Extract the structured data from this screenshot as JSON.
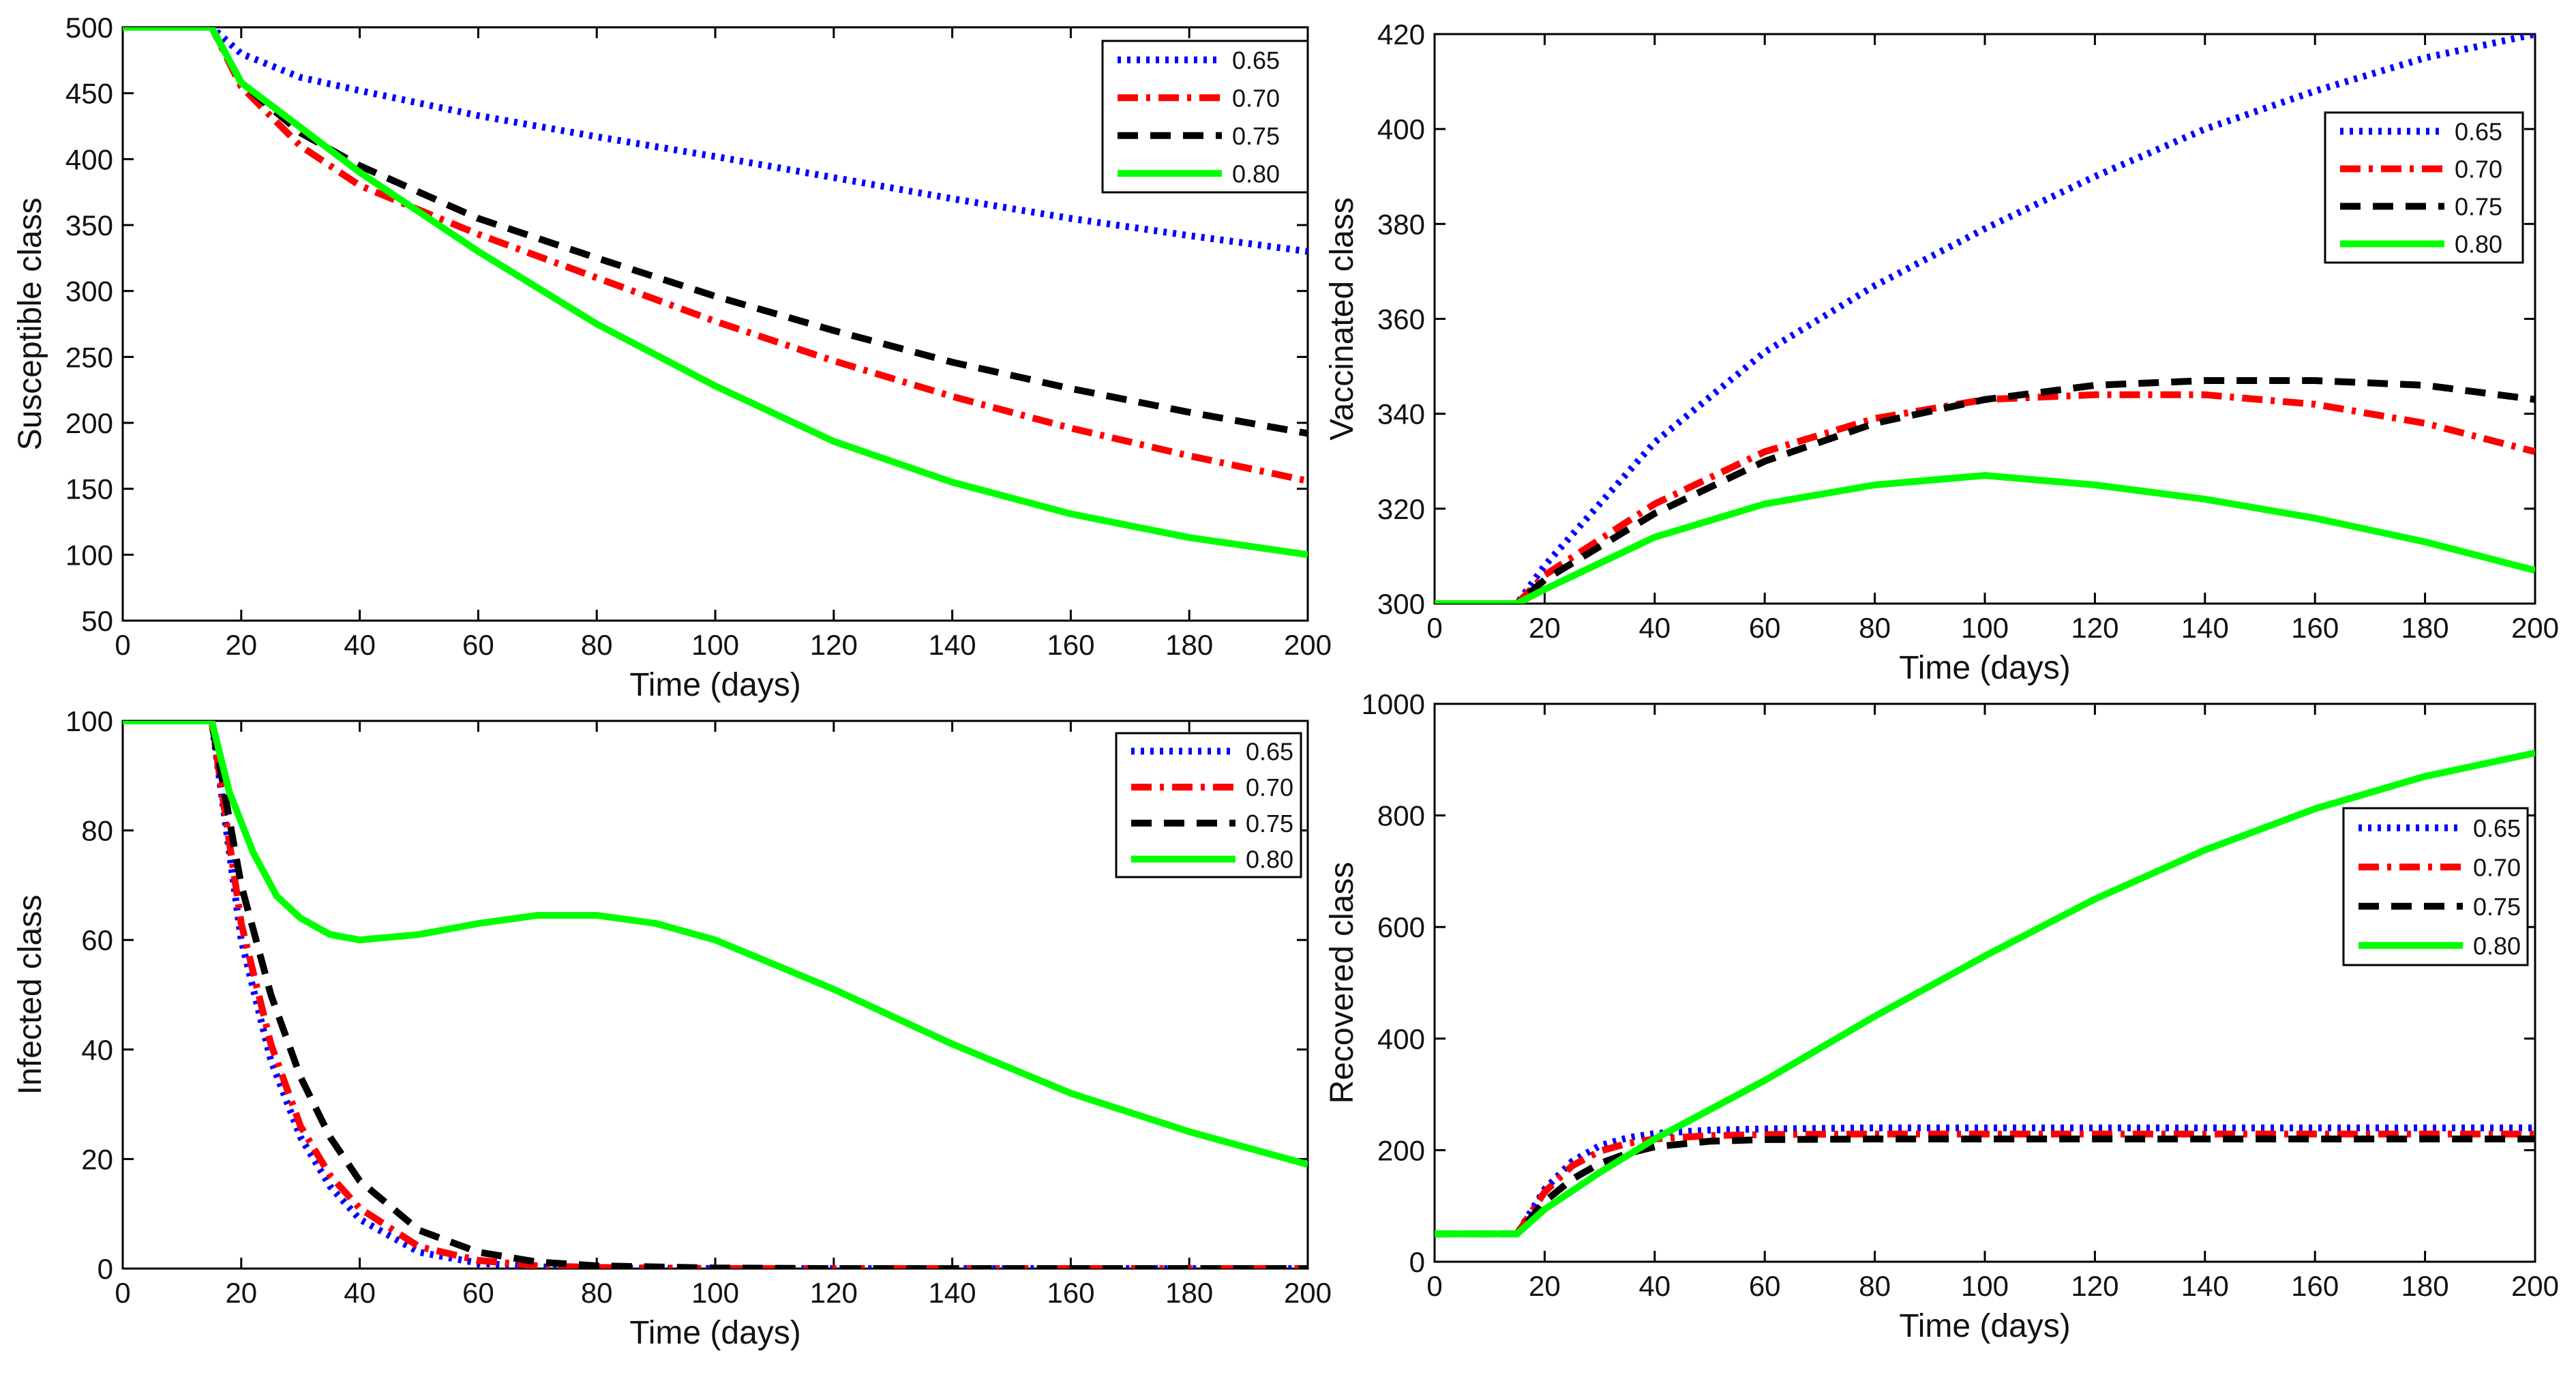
{
  "chart_data": [
    {
      "type": "line",
      "xlabel": "Time  (days)",
      "ylabel": "Susceptible class",
      "xlim": [
        0,
        200
      ],
      "ylim": [
        50,
        500
      ],
      "xticks": [
        0,
        20,
        40,
        60,
        80,
        100,
        120,
        140,
        160,
        180,
        200
      ],
      "yticks": [
        50,
        100,
        150,
        200,
        250,
        300,
        350,
        400,
        450,
        500
      ],
      "legend_position": "top-right",
      "series": [
        {
          "name": "0.65",
          "color": "#0000ff",
          "style": "dotted",
          "x": [
            0,
            15,
            20,
            30,
            40,
            60,
            80,
            100,
            120,
            140,
            160,
            180,
            200
          ],
          "y": [
            500,
            500,
            480,
            462,
            452,
            433,
            417,
            402,
            386,
            370,
            355,
            342,
            330
          ]
        },
        {
          "name": "0.70",
          "color": "#ff0000",
          "style": "dashdot",
          "x": [
            0,
            15,
            20,
            30,
            40,
            60,
            80,
            100,
            120,
            140,
            160,
            180,
            200
          ],
          "y": [
            500,
            500,
            455,
            410,
            380,
            343,
            310,
            277,
            247,
            220,
            196,
            175,
            156
          ]
        },
        {
          "name": "0.75",
          "color": "#000000",
          "style": "dashed",
          "x": [
            0,
            15,
            20,
            30,
            40,
            60,
            80,
            100,
            120,
            140,
            160,
            180,
            200
          ],
          "y": [
            500,
            500,
            458,
            420,
            395,
            355,
            325,
            296,
            270,
            246,
            226,
            208,
            192
          ]
        },
        {
          "name": "0.80",
          "color": "#00ff00",
          "style": "solid",
          "x": [
            0,
            15,
            20,
            30,
            40,
            60,
            80,
            100,
            120,
            140,
            160,
            180,
            200
          ],
          "y": [
            500,
            500,
            458,
            424,
            390,
            330,
            275,
            228,
            186,
            155,
            131,
            113,
            100
          ]
        }
      ]
    },
    {
      "type": "line",
      "xlabel": "Time (days)",
      "ylabel": "Vaccinated class",
      "xlim": [
        0,
        200
      ],
      "ylim": [
        300,
        420
      ],
      "xticks": [
        0,
        20,
        40,
        60,
        80,
        100,
        120,
        140,
        160,
        180,
        200
      ],
      "yticks": [
        300,
        320,
        340,
        360,
        380,
        400,
        420
      ],
      "legend_position": "right",
      "series": [
        {
          "name": "0.65",
          "color": "#0000ff",
          "style": "dotted",
          "x": [
            0,
            15,
            20,
            40,
            60,
            80,
            100,
            120,
            140,
            160,
            180,
            200
          ],
          "y": [
            300,
            300,
            308,
            334,
            353,
            367,
            379,
            390,
            400,
            408,
            415,
            420
          ]
        },
        {
          "name": "0.70",
          "color": "#ff0000",
          "style": "dashdot",
          "x": [
            0,
            15,
            20,
            40,
            60,
            80,
            100,
            120,
            140,
            160,
            180,
            200
          ],
          "y": [
            300,
            300,
            306,
            321,
            332,
            339,
            343,
            344,
            344,
            342,
            338,
            332
          ]
        },
        {
          "name": "0.75",
          "color": "#000000",
          "style": "dashed",
          "x": [
            0,
            15,
            20,
            40,
            60,
            80,
            100,
            120,
            140,
            160,
            180,
            200
          ],
          "y": [
            300,
            300,
            305,
            319,
            330,
            338,
            343,
            346,
            347,
            347,
            346,
            343
          ]
        },
        {
          "name": "0.80",
          "color": "#00ff00",
          "style": "solid",
          "x": [
            0,
            15,
            20,
            40,
            60,
            80,
            100,
            120,
            140,
            160,
            180,
            200
          ],
          "y": [
            300,
            300,
            303,
            314,
            321,
            325,
            327,
            325,
            322,
            318,
            313,
            307
          ]
        }
      ]
    },
    {
      "type": "line",
      "xlabel": "Time (days)",
      "ylabel": "Infected class",
      "xlim": [
        0,
        200
      ],
      "ylim": [
        0,
        100
      ],
      "xticks": [
        0,
        20,
        40,
        60,
        80,
        100,
        120,
        140,
        160,
        180,
        200
      ],
      "yticks": [
        0,
        20,
        40,
        60,
        80,
        100
      ],
      "legend_position": "top-right",
      "series": [
        {
          "name": "0.65",
          "color": "#0000ff",
          "style": "dotted",
          "x": [
            0,
            15,
            20,
            25,
            30,
            35,
            40,
            50,
            60,
            70,
            80,
            100,
            120,
            160,
            200
          ],
          "y": [
            100,
            100,
            60,
            38,
            24,
            15,
            9,
            3,
            1,
            0.3,
            0.1,
            0,
            0,
            0,
            0
          ]
        },
        {
          "name": "0.70",
          "color": "#ff0000",
          "style": "dashdot",
          "x": [
            0,
            15,
            20,
            25,
            30,
            35,
            40,
            50,
            60,
            70,
            80,
            100,
            120,
            160,
            200
          ],
          "y": [
            100,
            100,
            63,
            41,
            26,
            17,
            11,
            4,
            1.5,
            0.5,
            0.2,
            0,
            0,
            0,
            0
          ]
        },
        {
          "name": "0.75",
          "color": "#000000",
          "style": "dashed",
          "x": [
            0,
            15,
            20,
            25,
            30,
            35,
            40,
            50,
            60,
            70,
            80,
            100,
            120,
            160,
            200
          ],
          "y": [
            100,
            100,
            70,
            50,
            35,
            24,
            16,
            7,
            3,
            1.2,
            0.5,
            0.1,
            0,
            0,
            0
          ]
        },
        {
          "name": "0.80",
          "color": "#00ff00",
          "style": "solid",
          "x": [
            0,
            15,
            18,
            22,
            26,
            30,
            35,
            40,
            50,
            60,
            70,
            80,
            90,
            100,
            110,
            120,
            140,
            160,
            180,
            200
          ],
          "y": [
            100,
            100,
            87,
            76,
            68,
            64,
            61,
            60,
            61,
            63,
            64.5,
            64.5,
            63,
            60,
            55.5,
            51,
            41,
            32,
            25,
            19
          ]
        }
      ]
    },
    {
      "type": "line",
      "xlabel": "Time (days)",
      "ylabel": "Recovered class",
      "xlim": [
        0,
        200
      ],
      "ylim": [
        0,
        1000
      ],
      "xticks": [
        0,
        20,
        40,
        60,
        80,
        100,
        120,
        140,
        160,
        180,
        200
      ],
      "yticks": [
        0,
        200,
        400,
        600,
        800,
        1000
      ],
      "legend_position": "right",
      "series": [
        {
          "name": "0.65",
          "color": "#0000ff",
          "style": "dotted",
          "x": [
            0,
            15,
            20,
            25,
            30,
            35,
            40,
            50,
            60,
            80,
            100,
            140,
            200
          ],
          "y": [
            50,
            50,
            130,
            180,
            208,
            222,
            230,
            236,
            238,
            240,
            240,
            240,
            240
          ]
        },
        {
          "name": "0.70",
          "color": "#ff0000",
          "style": "dashdot",
          "x": [
            0,
            15,
            20,
            25,
            30,
            35,
            40,
            50,
            60,
            80,
            100,
            140,
            200
          ],
          "y": [
            50,
            50,
            125,
            172,
            198,
            212,
            220,
            226,
            228,
            229,
            229,
            229,
            229
          ]
        },
        {
          "name": "0.75",
          "color": "#000000",
          "style": "dashed",
          "x": [
            0,
            15,
            20,
            25,
            30,
            35,
            40,
            50,
            60,
            80,
            100,
            140,
            200
          ],
          "y": [
            50,
            50,
            108,
            148,
            176,
            194,
            206,
            216,
            219,
            220,
            220,
            220,
            220
          ]
        },
        {
          "name": "0.80",
          "color": "#00ff00",
          "style": "solid",
          "x": [
            0,
            15,
            20,
            30,
            40,
            60,
            80,
            100,
            120,
            140,
            160,
            180,
            200
          ],
          "y": [
            50,
            50,
            94,
            160,
            220,
            325,
            440,
            548,
            650,
            738,
            812,
            870,
            912
          ]
        }
      ]
    }
  ]
}
